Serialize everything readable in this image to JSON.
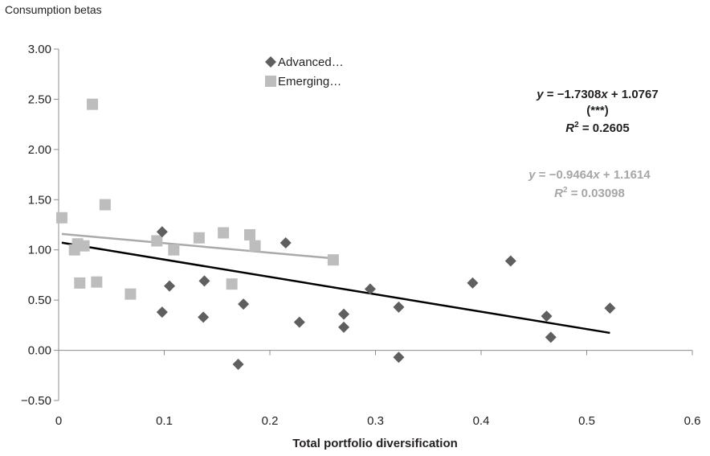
{
  "chart_data": {
    "type": "scatter",
    "ylabel": "Consumption betas",
    "xlabel": "Total portfolio diversification",
    "xlim": [
      0,
      0.6
    ],
    "ylim": [
      -0.5,
      3.0
    ],
    "x_ticks": [
      "0",
      "0.1",
      "0.2",
      "0.3",
      "0.4",
      "0.5",
      "0.6"
    ],
    "y_ticks": [
      "−0.50",
      "0.00",
      "0.50",
      "1.00",
      "1.50",
      "2.00",
      "2.50",
      "3.00"
    ],
    "legend_position": "top-center",
    "grid": false,
    "series": [
      {
        "name": "Advanced…",
        "marker": "diamond",
        "color": "#5f5f5f",
        "points": [
          [
            0.098,
            1.18
          ],
          [
            0.105,
            0.64
          ],
          [
            0.098,
            0.38
          ],
          [
            0.138,
            0.69
          ],
          [
            0.137,
            0.33
          ],
          [
            0.175,
            0.46
          ],
          [
            0.17,
            -0.14
          ],
          [
            0.215,
            1.07
          ],
          [
            0.228,
            0.28
          ],
          [
            0.27,
            0.36
          ],
          [
            0.27,
            0.23
          ],
          [
            0.295,
            0.61
          ],
          [
            0.322,
            0.43
          ],
          [
            0.322,
            -0.07
          ],
          [
            0.392,
            0.67
          ],
          [
            0.428,
            0.89
          ],
          [
            0.462,
            0.34
          ],
          [
            0.466,
            0.13
          ],
          [
            0.522,
            0.42
          ]
        ],
        "trend": {
          "slope": -1.7308,
          "intercept": 1.0767,
          "x_range": [
            0.003,
            0.522
          ],
          "color": "#000000"
        }
      },
      {
        "name": "Emerging…",
        "marker": "square",
        "color": "#bdbdbd",
        "points": [
          [
            0.003,
            1.32
          ],
          [
            0.015,
            1.0
          ],
          [
            0.018,
            1.06
          ],
          [
            0.02,
            0.67
          ],
          [
            0.024,
            1.04
          ],
          [
            0.032,
            2.45
          ],
          [
            0.036,
            0.68
          ],
          [
            0.044,
            1.45
          ],
          [
            0.068,
            0.56
          ],
          [
            0.093,
            1.09
          ],
          [
            0.109,
            1.0
          ],
          [
            0.133,
            1.12
          ],
          [
            0.156,
            1.17
          ],
          [
            0.164,
            0.66
          ],
          [
            0.181,
            1.15
          ],
          [
            0.186,
            1.04
          ],
          [
            0.26,
            0.9
          ]
        ],
        "trend": {
          "slope": -0.9464,
          "intercept": 1.1614,
          "x_range": [
            0.003,
            0.26
          ],
          "color": "#aaaaaa"
        }
      }
    ],
    "annotations": {
      "advanced": {
        "eq_y": "y",
        "eq_rest": "= −1.7308",
        "eq_x": "x",
        "eq_tail": "+ 1.0767",
        "sig": "(***)",
        "r2_r": "R",
        "r2_sup": "2",
        "r2_val": "= 0.2605",
        "color": "#231f20"
      },
      "emerging": {
        "eq_y": "y",
        "eq_rest": "= −0.9464",
        "eq_x": "x",
        "eq_tail": "+ 1.1614",
        "r2_r": "R",
        "r2_sup": "2",
        "r2_val": "= 0.03098",
        "color": "#a6a6a6"
      }
    }
  }
}
